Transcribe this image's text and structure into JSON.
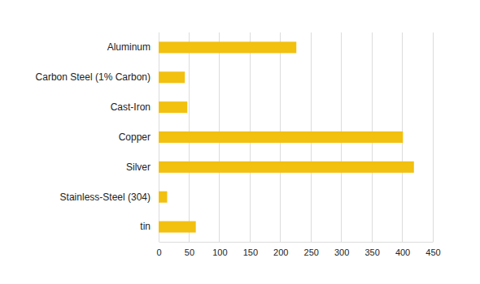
{
  "chart_data": {
    "type": "bar",
    "orientation": "horizontal",
    "categories": [
      "Aluminum",
      "Carbon Steel (1% Carbon)",
      "Cast-Iron",
      "Copper",
      "Silver",
      "Stainless-Steel (304)",
      "tin"
    ],
    "values": [
      226,
      43,
      47,
      401,
      419,
      14,
      61
    ],
    "color": "#f2c00f",
    "xlim": [
      0,
      450
    ],
    "xticks": [
      0,
      50,
      100,
      150,
      200,
      250,
      300,
      350,
      400,
      450
    ],
    "grid": true
  }
}
